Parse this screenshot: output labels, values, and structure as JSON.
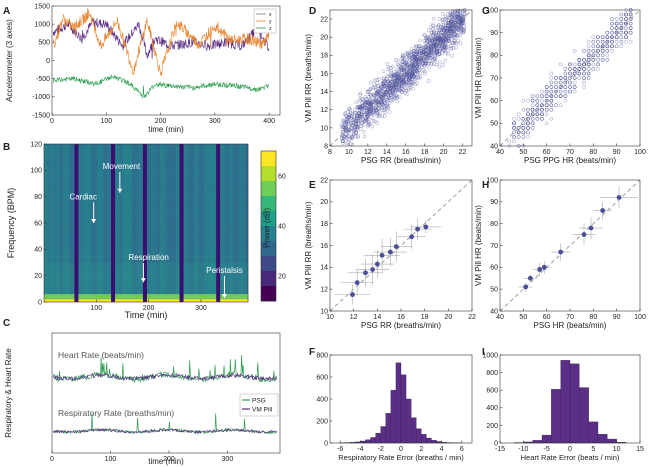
{
  "colors": {
    "x": "#7b7b7b",
    "y": "#e8832a",
    "z": "#2e9e4f",
    "purple": "#5a2a86",
    "psg": "#2e9e4f",
    "pill": "#5a2a86",
    "scatter": "#4b4f9a",
    "hist": "#5b2f86",
    "dash": "#888888"
  },
  "chart_data": [
    {
      "panel": "A",
      "type": "line",
      "ylabel": "Accelerometer (3 axes)",
      "xlabel": "time (min)",
      "xlim": [
        0,
        420
      ],
      "ylim": [
        -1500,
        1500
      ],
      "xticks": [
        0,
        100,
        200,
        300,
        400
      ],
      "yticks": [
        1500,
        1000,
        500,
        0,
        -500,
        -1000,
        -1500
      ],
      "yticklabels": [
        "1500",
        "1000",
        "500",
        "0",
        "-500",
        "-1000",
        "-1500"
      ],
      "legend": [
        "x",
        "y",
        "z"
      ],
      "series": [
        {
          "name": "x",
          "x": [
            5,
            30,
            55,
            75,
            100,
            130,
            160,
            175,
            190,
            220,
            260,
            290,
            320,
            350,
            380,
            400
          ],
          "values": [
            800,
            1000,
            600,
            1050,
            1000,
            400,
            1000,
            150,
            600,
            400,
            500,
            400,
            500,
            400,
            900,
            300
          ]
        },
        {
          "name": "y",
          "x": [
            5,
            20,
            40,
            70,
            90,
            120,
            150,
            175,
            200,
            230,
            270,
            300,
            330,
            360,
            390,
            400
          ],
          "values": [
            500,
            1150,
            900,
            1300,
            400,
            1100,
            -300,
            1100,
            -350,
            1050,
            450,
            950,
            550,
            600,
            450,
            700
          ]
        },
        {
          "name": "z",
          "x": [
            5,
            40,
            80,
            110,
            140,
            170,
            190,
            220,
            260,
            300,
            340,
            380,
            400
          ],
          "values": [
            -550,
            -500,
            -650,
            -450,
            -600,
            -1000,
            -650,
            -700,
            -750,
            -650,
            -700,
            -800,
            -700
          ]
        }
      ]
    },
    {
      "panel": "B",
      "type": "heatmap",
      "ylabel": "Frequency (BPM)",
      "xlabel": "Time (min)",
      "xlim": [
        0,
        390
      ],
      "ylim": [
        0,
        120
      ],
      "xticks": [
        100,
        200,
        300
      ],
      "yticks": [
        0,
        20,
        40,
        60,
        80,
        100,
        120
      ],
      "colorbar": {
        "label": "Power (dB)",
        "ticks": [
          20,
          40,
          60
        ],
        "range": [
          10,
          70
        ]
      },
      "gaps_min": [
        62,
        132,
        193,
        263,
        333
      ],
      "annotations": [
        {
          "text": "Cardiac",
          "x": 75,
          "y": 78,
          "arrow_to": [
            95,
            60
          ]
        },
        {
          "text": "Movement",
          "x": 148,
          "y": 101,
          "arrow_to": [
            145,
            83
          ]
        },
        {
          "text": "Respiration",
          "x": 200,
          "y": 32,
          "arrow_to": [
            190,
            15
          ]
        },
        {
          "text": "Peristalsis",
          "x": 345,
          "y": 22,
          "arrow_to": [
            345,
            3
          ]
        }
      ]
    },
    {
      "panel": "C",
      "type": "line",
      "ylabel": "Respiratory & Heart Rate",
      "xlabel": "time (min)",
      "xticks": [
        0,
        100,
        200,
        300
      ],
      "label_hr": "Heart Rate (beats/min)",
      "label_rr": "Respiratory Rate (breaths/min)",
      "legend": [
        "PSG",
        "VM Pill"
      ]
    },
    {
      "panel": "D",
      "type": "scatter",
      "xlabel": "PSG RR (breaths/min)",
      "ylabel": "VM Pill RR (breaths/min)",
      "xlim": [
        8,
        23
      ],
      "ylim": [
        8,
        23
      ],
      "xticks": [
        8,
        10,
        12,
        14,
        16,
        18,
        20,
        22
      ],
      "yticks": [
        8,
        10,
        12,
        14,
        16,
        18,
        20,
        22
      ],
      "n_points": 1500,
      "slope": 1.0,
      "spread": 1.5
    },
    {
      "panel": "E",
      "type": "scatter",
      "xlabel": "PSG RR (breaths/min)",
      "ylabel": "VM Pill RR (breaths/min)",
      "xlim": [
        10,
        22
      ],
      "ylim": [
        10,
        22
      ],
      "xticks": [
        10,
        12,
        14,
        16,
        18,
        20,
        22
      ],
      "yticks": [
        10,
        12,
        14,
        16,
        18,
        20,
        22
      ],
      "x": [
        11.9,
        12.3,
        13.0,
        13.6,
        14.0,
        14.4,
        15.1,
        15.6,
        16.9,
        17.4,
        18.1
      ],
      "values": [
        11.5,
        12.6,
        13.5,
        13.8,
        14.3,
        15.1,
        15.4,
        15.9,
        16.8,
        17.5,
        17.7
      ],
      "xerr": [
        1.5,
        1.4,
        1.5,
        1.4,
        1.4,
        1.5,
        1.4,
        1.3,
        1.2,
        1.2,
        1.3
      ],
      "yerr": [
        0.9,
        1.2,
        1.3,
        1.4,
        1.3,
        1.5,
        1.3,
        1.4,
        1.1,
        1.0,
        0.6
      ]
    },
    {
      "panel": "F",
      "type": "bar",
      "xlabel": "Respiratory Rate Error (breaths / min)",
      "xlim": [
        -7,
        7
      ],
      "ylim": [
        0,
        800
      ],
      "xticks": [
        -6,
        -4,
        -2,
        0,
        2,
        4,
        6
      ],
      "yticks": [
        0,
        200,
        400,
        600,
        800
      ],
      "bin_width": 0.5,
      "bin_centers": [
        -5.75,
        -5.25,
        -4.75,
        -4.25,
        -3.75,
        -3.25,
        -2.75,
        -2.25,
        -1.75,
        -1.25,
        -0.75,
        -0.25,
        0.25,
        0.75,
        1.25,
        1.75,
        2.25,
        2.75,
        3.25,
        3.75,
        4.25,
        4.75,
        5.25,
        5.75
      ],
      "values": [
        2,
        4,
        6,
        10,
        18,
        30,
        50,
        90,
        150,
        270,
        480,
        730,
        620,
        400,
        230,
        130,
        80,
        45,
        25,
        14,
        8,
        4,
        2,
        1
      ]
    },
    {
      "panel": "G",
      "type": "scatter",
      "xlabel": "PSG PPG HR (beats/min)",
      "ylabel": "VM Pill HR (beats/min)",
      "xlim": [
        40,
        100
      ],
      "ylim": [
        40,
        100
      ],
      "xticks": [
        40,
        50,
        60,
        70,
        80,
        90,
        100
      ],
      "yticks": [
        40,
        50,
        60,
        70,
        80,
        90,
        100
      ],
      "n_points": 700,
      "slope": 1.0,
      "spread": 5
    },
    {
      "panel": "H",
      "type": "scatter",
      "xlabel": "PSG HR (beats/min)",
      "ylabel": "VM Pill HR (beats/min)",
      "xlim": [
        40,
        100
      ],
      "ylim": [
        40,
        100
      ],
      "xticks": [
        40,
        50,
        60,
        70,
        80,
        90,
        100
      ],
      "yticks": [
        40,
        50,
        60,
        70,
        80,
        90,
        100
      ],
      "x": [
        51,
        53,
        57,
        59,
        66,
        76,
        79,
        84,
        91
      ],
      "values": [
        51,
        55,
        59,
        60,
        67,
        75,
        78,
        86,
        92
      ],
      "xerr": [
        3,
        3,
        3,
        3,
        4,
        5,
        5,
        4,
        8
      ],
      "yerr": [
        2,
        2,
        3,
        3,
        4,
        5,
        5,
        4,
        5
      ]
    },
    {
      "panel": "I",
      "type": "bar",
      "xlabel": "Heart Rate Error (beats / min)",
      "xlim": [
        -15,
        15
      ],
      "ylim": [
        0,
        1000
      ],
      "xticks": [
        -15,
        -10,
        -5,
        0,
        5,
        10,
        15
      ],
      "yticks": [
        0,
        200,
        400,
        600,
        800,
        1000
      ],
      "bin_width": 2,
      "bin_centers": [
        -11,
        -9,
        -7,
        -5,
        -3,
        -1,
        1,
        3,
        5,
        7,
        9,
        11
      ],
      "values": [
        5,
        12,
        30,
        90,
        610,
        940,
        900,
        630,
        240,
        100,
        45,
        8
      ]
    }
  ]
}
